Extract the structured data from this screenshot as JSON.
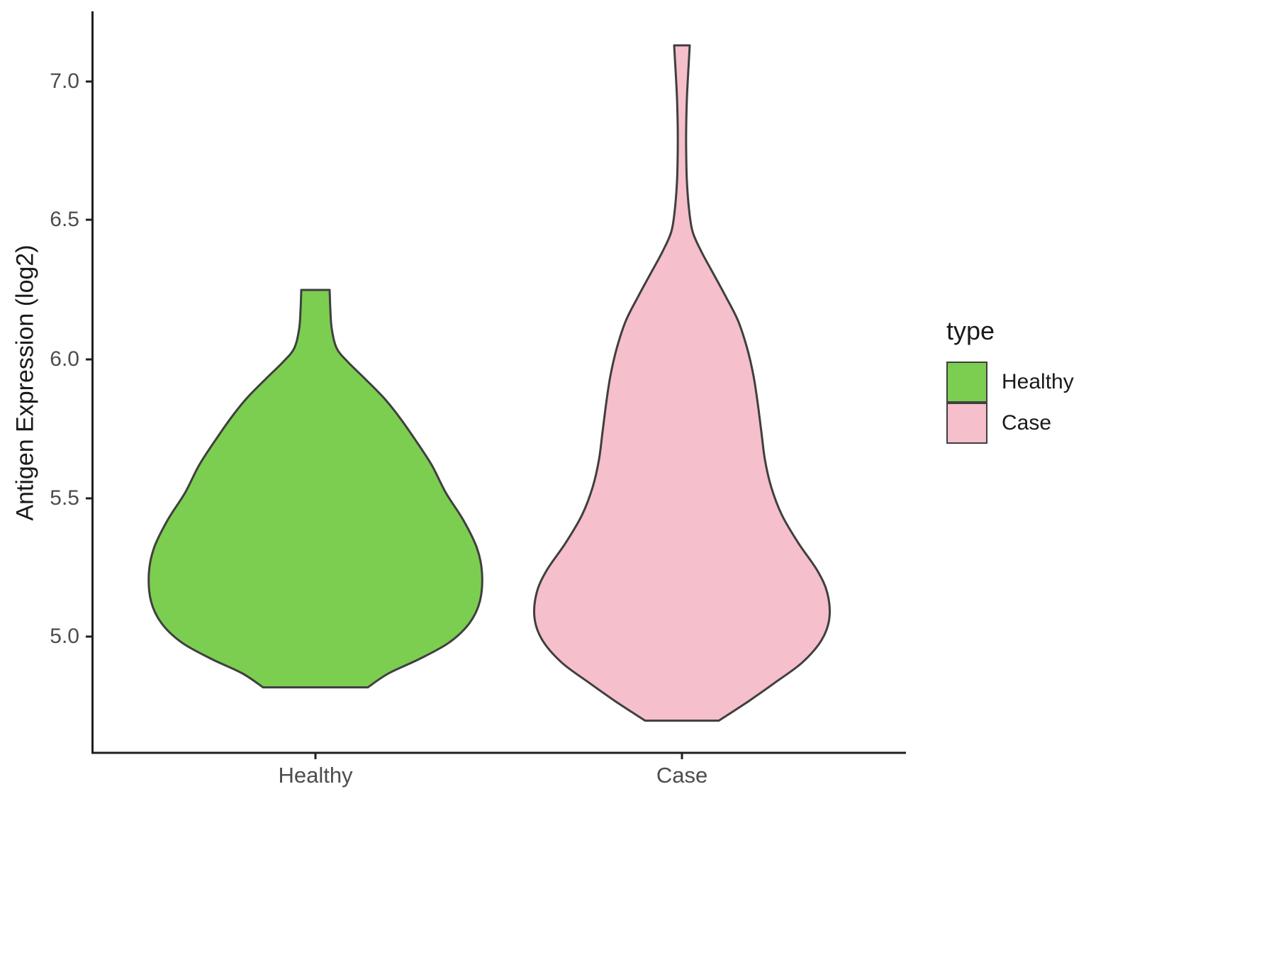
{
  "chart_data": {
    "type": "violin",
    "title": "",
    "xlabel": "",
    "ylabel": "Antigen Expression (log2)",
    "categories": [
      "Healthy",
      "Case"
    ],
    "y_ticks": [
      5.0,
      5.5,
      6.0,
      6.5,
      7.0
    ],
    "y_tick_labels": [
      "5.0",
      "5.5",
      "6.0",
      "6.5",
      "7.0"
    ],
    "ylim": [
      4.58,
      7.25
    ],
    "grid": false,
    "outline_color": "#3f3f3f",
    "legend": {
      "title": "type",
      "position": "right",
      "entries": [
        {
          "label": "Healthy",
          "color": "#7CCE50"
        },
        {
          "label": "Case",
          "color": "#F5BFCB"
        }
      ]
    },
    "series": [
      {
        "name": "Healthy",
        "fill": "#7CCE50",
        "y_range": [
          4.82,
          6.25
        ],
        "profile": [
          [
            6.25,
            20
          ],
          [
            6.18,
            21
          ],
          [
            6.11,
            23
          ],
          [
            6.04,
            30
          ],
          [
            5.99,
            46
          ],
          [
            5.93,
            70
          ],
          [
            5.86,
            97
          ],
          [
            5.79,
            119
          ],
          [
            5.71,
            141
          ],
          [
            5.62,
            164
          ],
          [
            5.52,
            184
          ],
          [
            5.42,
            209
          ],
          [
            5.32,
            228
          ],
          [
            5.23,
            235
          ],
          [
            5.13,
            232
          ],
          [
            5.05,
            217
          ],
          [
            4.98,
            188
          ],
          [
            4.92,
            145
          ],
          [
            4.87,
            103
          ],
          [
            4.82,
            74
          ]
        ]
      },
      {
        "name": "Case",
        "fill": "#F5BFCB",
        "y_range": [
          4.7,
          7.13
        ],
        "profile": [
          [
            7.13,
            11
          ],
          [
            7.04,
            9
          ],
          [
            6.94,
            7
          ],
          [
            6.84,
            6
          ],
          [
            6.74,
            6
          ],
          [
            6.64,
            7
          ],
          [
            6.54,
            10
          ],
          [
            6.46,
            15
          ],
          [
            6.39,
            27
          ],
          [
            6.31,
            44
          ],
          [
            6.23,
            61
          ],
          [
            6.14,
            79
          ],
          [
            6.04,
            92
          ],
          [
            5.94,
            101
          ],
          [
            5.84,
            107
          ],
          [
            5.74,
            112
          ],
          [
            5.64,
            117
          ],
          [
            5.54,
            126
          ],
          [
            5.44,
            141
          ],
          [
            5.34,
            164
          ],
          [
            5.24,
            191
          ],
          [
            5.16,
            205
          ],
          [
            5.07,
            208
          ],
          [
            4.99,
            197
          ],
          [
            4.91,
            170
          ],
          [
            4.84,
            133
          ],
          [
            4.77,
            94
          ],
          [
            4.7,
            52
          ]
        ]
      }
    ]
  }
}
